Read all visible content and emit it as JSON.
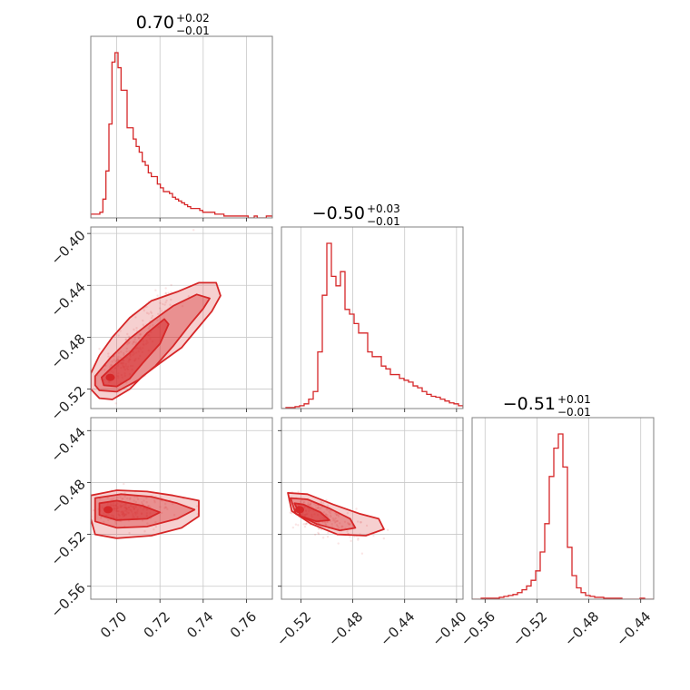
{
  "chart_data": {
    "type": "corner",
    "color": "#d62728",
    "panels": [
      {
        "id": "hist-0",
        "type": "histogram",
        "row": 0,
        "col": 0,
        "title": {
          "main": "0.70",
          "sup": "+0.02",
          "sub": "−0.01"
        },
        "xlim": [
          0.688,
          0.772
        ],
        "xticks": [
          0.7,
          0.72,
          0.74,
          0.76
        ],
        "bins": [
          0.688,
          0.772
        ],
        "counts": [
          2,
          2,
          2,
          3,
          10,
          25,
          50,
          83,
          88,
          80,
          68,
          68,
          48,
          48,
          42,
          38,
          35,
          30,
          28,
          24,
          22,
          22,
          18,
          16,
          14,
          14,
          13,
          11,
          10,
          9,
          8,
          7,
          6,
          5,
          5,
          5,
          4,
          3,
          3,
          3,
          3,
          2,
          2,
          2,
          1,
          1,
          1,
          1,
          1,
          1,
          1,
          1,
          0,
          0,
          1,
          0,
          0,
          0,
          1,
          1
        ]
      },
      {
        "id": "scatter-10",
        "type": "contour",
        "row": 1,
        "col": 0,
        "xlim": [
          0.688,
          0.772
        ],
        "ylim": [
          -0.535,
          -0.395
        ],
        "xticks": [
          0.7,
          0.72,
          0.74,
          0.76
        ],
        "yticks": [
          -0.52,
          -0.48,
          -0.44,
          -0.4
        ],
        "ytick_labels": [
          "−0.52",
          "−0.48",
          "−0.44",
          "−0.40"
        ],
        "mode": [
          0.697,
          -0.511
        ],
        "levels": [
          [
            [
              0.694,
              -0.517
            ],
            [
              0.7,
              -0.518
            ],
            [
              0.706,
              -0.512
            ],
            [
              0.712,
              -0.5
            ],
            [
              0.72,
              -0.485
            ],
            [
              0.724,
              -0.47
            ],
            [
              0.722,
              -0.466
            ],
            [
              0.714,
              -0.477
            ],
            [
              0.706,
              -0.492
            ],
            [
              0.698,
              -0.503
            ],
            [
              0.693,
              -0.511
            ]
          ],
          [
            [
              0.692,
              -0.521
            ],
            [
              0.7,
              -0.522
            ],
            [
              0.71,
              -0.513
            ],
            [
              0.718,
              -0.502
            ],
            [
              0.726,
              -0.487
            ],
            [
              0.734,
              -0.47
            ],
            [
              0.74,
              -0.458
            ],
            [
              0.743,
              -0.45
            ],
            [
              0.737,
              -0.447
            ],
            [
              0.726,
              -0.456
            ],
            [
              0.716,
              -0.468
            ],
            [
              0.706,
              -0.481
            ],
            [
              0.697,
              -0.496
            ],
            [
              0.69,
              -0.51
            ],
            [
              0.69,
              -0.517
            ]
          ],
          [
            [
              0.692,
              -0.527
            ],
            [
              0.698,
              -0.528
            ],
            [
              0.706,
              -0.52
            ],
            [
              0.712,
              -0.51
            ],
            [
              0.72,
              -0.5
            ],
            [
              0.73,
              -0.488
            ],
            [
              0.738,
              -0.472
            ],
            [
              0.744,
              -0.46
            ],
            [
              0.748,
              -0.448
            ],
            [
              0.746,
              -0.438
            ],
            [
              0.738,
              -0.438
            ],
            [
              0.728,
              -0.445
            ],
            [
              0.716,
              -0.452
            ],
            [
              0.706,
              -0.465
            ],
            [
              0.698,
              -0.48
            ],
            [
              0.692,
              -0.494
            ],
            [
              0.688,
              -0.508
            ],
            [
              0.688,
              -0.52
            ]
          ]
        ]
      },
      {
        "id": "hist-1",
        "type": "histogram",
        "row": 1,
        "col": 1,
        "title": {
          "main": "−0.50",
          "sup": "+0.03",
          "sub": "−0.01"
        },
        "xlim": [
          -0.535,
          -0.395
        ],
        "xticks": [
          -0.52,
          -0.48,
          -0.44,
          -0.4
        ],
        "counts": [
          0,
          1,
          1,
          2,
          3,
          5,
          10,
          18,
          60,
          120,
          175,
          140,
          130,
          145,
          105,
          100,
          90,
          80,
          80,
          60,
          55,
          55,
          45,
          42,
          36,
          36,
          32,
          30,
          28,
          24,
          22,
          18,
          15,
          13,
          12,
          10,
          8,
          6,
          5,
          3
        ]
      },
      {
        "id": "scatter-20",
        "type": "contour",
        "row": 2,
        "col": 0,
        "xlim": [
          0.688,
          0.772
        ],
        "ylim": [
          -0.57,
          -0.43
        ],
        "xticks": [
          0.7,
          0.72,
          0.74,
          0.76
        ],
        "yticks": [
          -0.56,
          -0.52,
          -0.48,
          -0.44
        ],
        "ytick_labels": [
          "−0.56",
          "−0.52",
          "−0.48",
          "−0.44"
        ],
        "mode": [
          0.696,
          -0.501
        ],
        "levels": [
          [
            [
              0.692,
              -0.496
            ],
            [
              0.7,
              -0.494
            ],
            [
              0.712,
              -0.498
            ],
            [
              0.72,
              -0.503
            ],
            [
              0.714,
              -0.508
            ],
            [
              0.7,
              -0.509
            ],
            [
              0.692,
              -0.505
            ]
          ],
          [
            [
              0.69,
              -0.492
            ],
            [
              0.702,
              -0.489
            ],
            [
              0.716,
              -0.491
            ],
            [
              0.728,
              -0.496
            ],
            [
              0.736,
              -0.501
            ],
            [
              0.728,
              -0.508
            ],
            [
              0.714,
              -0.514
            ],
            [
              0.7,
              -0.515
            ],
            [
              0.69,
              -0.51
            ]
          ],
          [
            [
              0.688,
              -0.49
            ],
            [
              0.7,
              -0.486
            ],
            [
              0.714,
              -0.487
            ],
            [
              0.726,
              -0.49
            ],
            [
              0.738,
              -0.494
            ],
            [
              0.738,
              -0.506
            ],
            [
              0.73,
              -0.515
            ],
            [
              0.716,
              -0.521
            ],
            [
              0.7,
              -0.523
            ],
            [
              0.69,
              -0.52
            ],
            [
              0.688,
              -0.508
            ]
          ]
        ]
      },
      {
        "id": "scatter-21",
        "type": "contour",
        "row": 2,
        "col": 1,
        "xlim": [
          -0.535,
          -0.395
        ],
        "ylim": [
          -0.57,
          -0.43
        ],
        "xticks": [
          -0.52,
          -0.48,
          -0.44,
          -0.4
        ],
        "yticks": [
          -0.56,
          -0.52,
          -0.48,
          -0.44
        ],
        "mode": [
          -0.521,
          -0.501
        ],
        "levels": [
          [
            [
              -0.525,
              -0.496
            ],
            [
              -0.518,
              -0.497
            ],
            [
              -0.505,
              -0.503
            ],
            [
              -0.498,
              -0.509
            ],
            [
              -0.508,
              -0.51
            ],
            [
              -0.52,
              -0.506
            ]
          ],
          [
            [
              -0.528,
              -0.492
            ],
            [
              -0.515,
              -0.493
            ],
            [
              -0.498,
              -0.5
            ],
            [
              -0.482,
              -0.508
            ],
            [
              -0.478,
              -0.515
            ],
            [
              -0.49,
              -0.517
            ],
            [
              -0.508,
              -0.512
            ],
            [
              -0.524,
              -0.504
            ]
          ],
          [
            [
              -0.53,
              -0.488
            ],
            [
              -0.515,
              -0.489
            ],
            [
              -0.495,
              -0.497
            ],
            [
              -0.475,
              -0.504
            ],
            [
              -0.46,
              -0.508
            ],
            [
              -0.456,
              -0.516
            ],
            [
              -0.47,
              -0.521
            ],
            [
              -0.492,
              -0.52
            ],
            [
              -0.512,
              -0.512
            ],
            [
              -0.527,
              -0.502
            ]
          ]
        ]
      },
      {
        "id": "hist-2",
        "type": "histogram",
        "row": 2,
        "col": 2,
        "title": {
          "main": "−0.51",
          "sup": "+0.01",
          "sub": "−0.01"
        },
        "xlim": [
          -0.57,
          -0.43
        ],
        "xticks": [
          -0.56,
          -0.52,
          -0.48,
          -0.44
        ],
        "xtick_labels": [
          "−0.56",
          "−0.52",
          "−0.48",
          "−0.44"
        ],
        "counts": [
          0,
          0,
          1,
          1,
          1,
          1,
          2,
          3,
          4,
          5,
          7,
          10,
          14,
          20,
          30,
          50,
          80,
          130,
          160,
          175,
          140,
          55,
          25,
          12,
          7,
          4,
          3,
          2,
          2,
          1,
          1,
          1,
          1,
          0,
          0,
          0,
          0,
          1,
          0,
          0
        ]
      }
    ],
    "bottom_xtick_labels": {
      "col0": [
        "0.70",
        "0.72",
        "0.74",
        "0.76"
      ],
      "col1": [
        "−0.52",
        "−0.48",
        "−0.44",
        "−0.40"
      ],
      "col2": [
        "−0.56",
        "−0.52",
        "−0.48",
        "−0.44"
      ]
    },
    "left_ytick_labels": {
      "row1": [
        "−0.52",
        "−0.48",
        "−0.44",
        "−0.40"
      ],
      "row2": [
        "−0.56",
        "−0.52",
        "−0.48",
        "−0.44"
      ]
    }
  }
}
